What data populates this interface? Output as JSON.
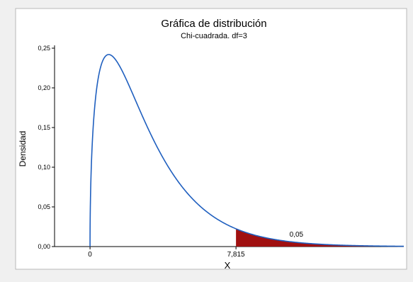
{
  "chart_data": {
    "type": "area",
    "title": "Gráfica de distribución",
    "subtitle": "Chi-cuadrada. df=3",
    "xlabel": "X",
    "ylabel": "Densidad",
    "distribution": "chi-square",
    "df": 3,
    "xlim": [
      -1.9,
      16.8
    ],
    "ylim": [
      0,
      0.25
    ],
    "y_ticks": [
      "0,00",
      "0,05",
      "0,10",
      "0,15",
      "0,20",
      "0,25"
    ],
    "y_tick_values": [
      0,
      0.05,
      0.1,
      0.15,
      0.2,
      0.25
    ],
    "x_ticks": [
      "0",
      "7,815"
    ],
    "x_tick_values": [
      0,
      7.815
    ],
    "critical_value": 7.815,
    "shaded_region": {
      "from": 7.815,
      "to": 16.8,
      "area_label": "0,05",
      "color": "#a01010"
    },
    "curve_color": "#1f5fbf",
    "grid": false
  }
}
